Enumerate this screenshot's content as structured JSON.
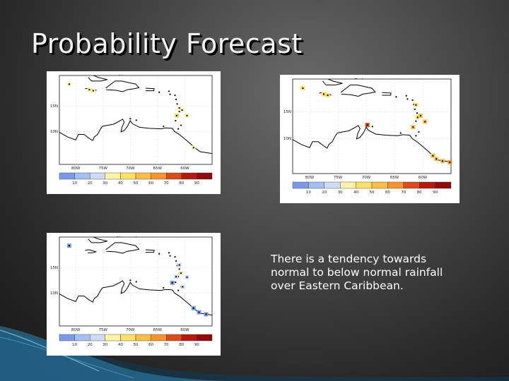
{
  "slide": {
    "title": "Probability Forecast",
    "note": "There is a tendency towards normal to below normal rainfall over Eastern Caribbean."
  },
  "colorbar": {
    "labels": [
      "10",
      "20",
      "30",
      "40",
      "50",
      "60",
      "70",
      "80",
      "90"
    ],
    "colors": [
      "#7b9ae8",
      "#a4bff0",
      "#cfdcf6",
      "#fbf3a8",
      "#fde168",
      "#fbbd43",
      "#f69431",
      "#d94d1d",
      "#b51a10",
      "#8f0a0a"
    ]
  },
  "maps": [
    {
      "key": "above",
      "title": "Above",
      "lat_labels": [
        "15N",
        "10N"
      ],
      "lon_labels": [
        "80W",
        "75W",
        "70W",
        "65W",
        "60W"
      ],
      "markers": [
        {
          "lon": -81.2,
          "lat": 19.3,
          "color": "#fbf3a8"
        },
        {
          "lon": -77.5,
          "lat": 18.2,
          "color": "#fbf3a8"
        },
        {
          "lon": -76.8,
          "lat": 18.0,
          "color": "#fbf3a8"
        },
        {
          "lon": -61.0,
          "lat": 14.6,
          "color": "#fbf3a8"
        },
        {
          "lon": -61.5,
          "lat": 13.1,
          "color": "#fde168"
        },
        {
          "lon": -60.5,
          "lat": 14.2,
          "color": "#fbf3a8"
        },
        {
          "lon": -59.6,
          "lat": 13.1,
          "color": "#fbf3a8"
        },
        {
          "lon": -58.4,
          "lat": 6.8,
          "color": "#fbf3a8"
        }
      ]
    },
    {
      "key": "below",
      "title": "Below",
      "lat_labels": [
        "15N",
        "10N"
      ],
      "lon_labels": [
        "80W",
        "75W",
        "70W",
        "65W",
        "60W"
      ],
      "markers": [
        {
          "lon": -81.2,
          "lat": 19.3,
          "color": "#fde168"
        },
        {
          "lon": -77.5,
          "lat": 18.2,
          "color": "#fde168"
        },
        {
          "lon": -76.8,
          "lat": 18.0,
          "color": "#fde168"
        },
        {
          "lon": -69.8,
          "lat": 12.5,
          "color": "#d94d1d"
        },
        {
          "lon": -61.2,
          "lat": 16.2,
          "color": "#fde168"
        },
        {
          "lon": -60.4,
          "lat": 14.2,
          "color": "#fbbd43"
        },
        {
          "lon": -60.9,
          "lat": 13.9,
          "color": "#fde168"
        },
        {
          "lon": -61.7,
          "lat": 12.1,
          "color": "#fbbd43"
        },
        {
          "lon": -59.6,
          "lat": 13.1,
          "color": "#fbbd43"
        },
        {
          "lon": -58.2,
          "lat": 6.8,
          "color": "#fbbd43"
        },
        {
          "lon": -57.6,
          "lat": 6.2,
          "color": "#fbbd43"
        },
        {
          "lon": -56.5,
          "lat": 5.8,
          "color": "#fbbd43"
        },
        {
          "lon": -55.2,
          "lat": 5.6,
          "color": "#f69431"
        }
      ]
    },
    {
      "key": "normal",
      "title": "Normal",
      "lat_labels": [
        "15N",
        "10N"
      ],
      "lon_labels": [
        "80W",
        "75W",
        "70W",
        "65W",
        "60W"
      ],
      "markers": [
        {
          "lon": -81.2,
          "lat": 19.3,
          "color": "#7b9ae8"
        },
        {
          "lon": -61.0,
          "lat": 15.5,
          "color": "#cfdcf6"
        },
        {
          "lon": -61.6,
          "lat": 13.2,
          "color": "#cfdcf6"
        },
        {
          "lon": -62.3,
          "lat": 12.0,
          "color": "#7b9ae8"
        },
        {
          "lon": -60.7,
          "lat": 13.9,
          "color": "#fbf3a8"
        },
        {
          "lon": -59.6,
          "lat": 13.1,
          "color": "#cfdcf6"
        },
        {
          "lon": -60.4,
          "lat": 11.2,
          "color": "#cfdcf6"
        },
        {
          "lon": -58.4,
          "lat": 7.0,
          "color": "#7b9ae8"
        },
        {
          "lon": -57.4,
          "lat": 6.2,
          "color": "#7b9ae8"
        },
        {
          "lon": -56.1,
          "lat": 5.8,
          "color": "#7b9ae8"
        }
      ]
    }
  ]
}
